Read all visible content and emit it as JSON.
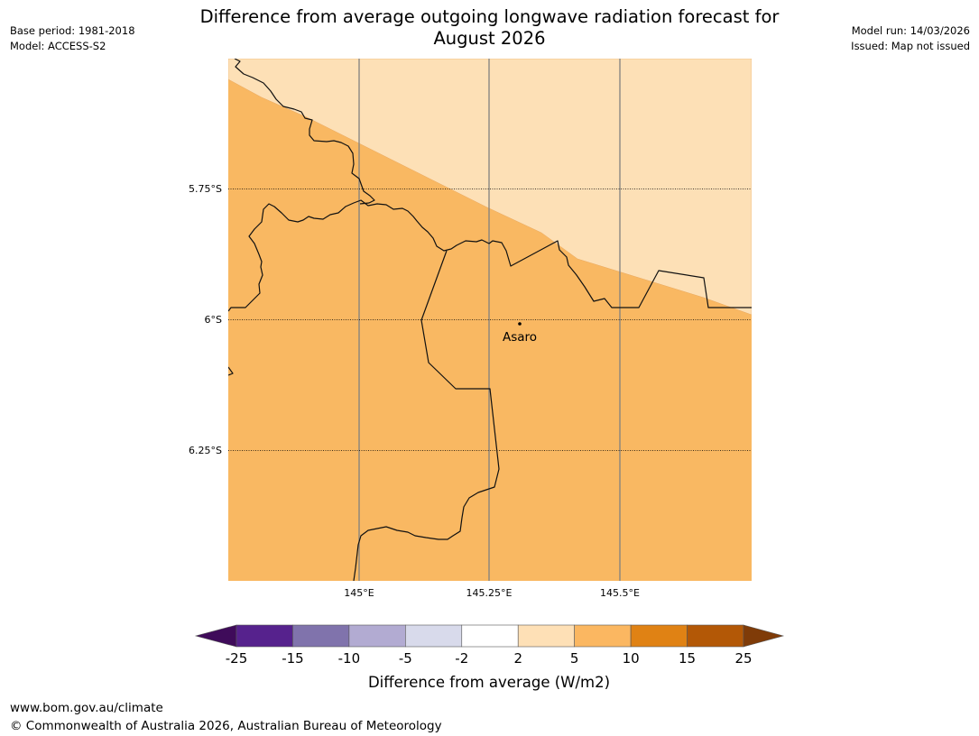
{
  "header": {
    "title_line1": "Difference from average outgoing longwave radiation forecast for",
    "title_line2": "August 2026",
    "base_period": "Base period: 1981-2018",
    "model": "Model: ACCESS-S2",
    "model_run": "Model run: 14/03/2026",
    "issued": "Issued: Map not issued"
  },
  "map": {
    "lat_labels": [
      "5.75°S",
      "6°S",
      "6.25°S"
    ],
    "lon_labels": [
      "145°E",
      "145.25°E",
      "145.5°E"
    ],
    "place": {
      "name": "Asaro"
    },
    "colors": {
      "band_2_5": "#fde0b6",
      "band_5_10": "#f9b862",
      "border": "#111111",
      "meridian": "#808080"
    }
  },
  "colorbar": {
    "title": "Difference from average (W/m2)",
    "tick_labels": [
      "-25",
      "-15",
      "-10",
      "-5",
      "-2",
      "2",
      "5",
      "10",
      "15",
      "25"
    ],
    "colors": [
      "#3f0b5a",
      "#56228d",
      "#8073ac",
      "#b2abd2",
      "#d8daeb",
      "#ffffff",
      "#fee0b6",
      "#fbb761",
      "#e08214",
      "#b35806",
      "#7f3b08"
    ]
  },
  "footer": {
    "url": "www.bom.gov.au/climate",
    "copyright": "© Commonwealth of Australia 2026, Australian Bureau of Meteorology"
  }
}
